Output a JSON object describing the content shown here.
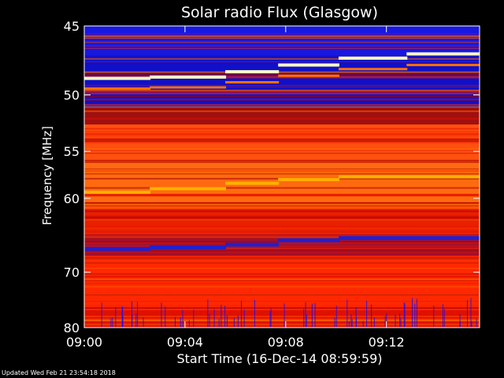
{
  "chart_data": {
    "type": "heatmap",
    "title": "Solar radio Flux (Glasgow)",
    "xlabel": "Start Time (16-Dec-14 08:59:59)",
    "ylabel": "Frequency [MHz]",
    "x_ticks": [
      "09:00",
      "09:04",
      "09:08",
      "09:12"
    ],
    "x_tick_minutes": [
      0,
      4,
      8,
      12
    ],
    "xlim_minutes": [
      0,
      15.7
    ],
    "y_ticks": [
      45,
      50,
      55,
      60,
      70,
      80
    ],
    "ylim": [
      45,
      80
    ],
    "y_scale": "reciprocal",
    "grid": false,
    "colormap": [
      "#0000a0",
      "#1010ff",
      "#a00000",
      "#e01000",
      "#ff3000",
      "#ff7000",
      "#ffb000",
      "#ffffc0"
    ],
    "features": {
      "bright_band_mhz": [
        48.7,
        48.6,
        48.2,
        47.7,
        47.2,
        46.9,
        46.6
      ],
      "bright_band_steps_minutes": [
        0,
        2.6,
        5.6,
        7.7,
        10.1,
        12.8,
        15.7
      ],
      "dark_band_mhz": [
        66.5,
        66.3,
        65.9,
        65.3,
        65.0
      ],
      "yellow_band_mhz": [
        59.3,
        58.9,
        58.3,
        57.9,
        57.6
      ]
    }
  },
  "footer": {
    "updated": "Updated Wed Feb 21 23:54:18 2018"
  }
}
